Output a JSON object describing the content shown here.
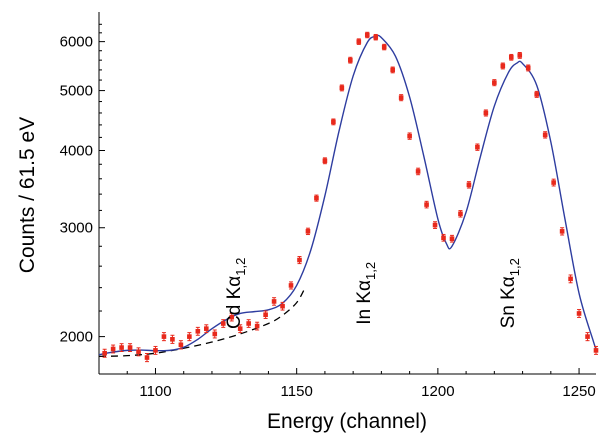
{
  "chart_data": {
    "type": "scatter",
    "title": "",
    "xlabel": "Energy (channel)",
    "ylabel": "Counts / 61.5 eV",
    "y_scale": "log",
    "xlim": [
      1080,
      1256
    ],
    "ylim": [
      1740,
      6700
    ],
    "x_ticks": [
      1100,
      1150,
      1200,
      1250
    ],
    "x_tick_labels": [
      "1100",
      "1150",
      "1200",
      "1250"
    ],
    "y_ticks": [
      2000,
      3000,
      4000,
      5000,
      6000
    ],
    "y_tick_labels": [
      "2000",
      "3000",
      "4000",
      "5000",
      "6000"
    ],
    "grid": false,
    "colors": {
      "data": "#e8291c",
      "error": "#e8291c",
      "fit": "#2e3da0",
      "background": "#000000"
    },
    "annotations": [
      {
        "text": "Cd Kα",
        "sub": "1,2",
        "x": 1130,
        "y": 2350
      },
      {
        "text": "In Kα",
        "sub": "1,2",
        "x": 1176,
        "y": 2350
      },
      {
        "text": "Sn Kα",
        "sub": "1,2",
        "x": 1227,
        "y": 2350
      }
    ],
    "series": [
      {
        "kind": "points",
        "x": [
          1082,
          1085,
          1088,
          1091,
          1094,
          1097,
          1100,
          1103,
          1106,
          1109,
          1112,
          1115,
          1118,
          1121,
          1124,
          1127,
          1130,
          1133,
          1136,
          1139,
          1142,
          1145,
          1148,
          1151,
          1154,
          1157,
          1160,
          1163,
          1166,
          1169,
          1172,
          1175,
          1178,
          1181,
          1184,
          1187,
          1190,
          1193,
          1196,
          1199,
          1202,
          1205,
          1208,
          1211,
          1214,
          1217,
          1220,
          1223,
          1226,
          1229,
          1232,
          1235,
          1238,
          1241,
          1244,
          1247,
          1250,
          1253,
          1256
        ],
        "y": [
          1880,
          1910,
          1920,
          1920,
          1890,
          1850,
          1900,
          2000,
          1980,
          1940,
          2000,
          2040,
          2060,
          2020,
          2100,
          2150,
          2060,
          2100,
          2080,
          2170,
          2280,
          2240,
          2420,
          2660,
          2960,
          3350,
          3850,
          4450,
          5050,
          5600,
          6000,
          6150,
          6100,
          5880,
          5400,
          4870,
          4220,
          3700,
          3270,
          3030,
          2890,
          2880,
          3160,
          3520,
          4050,
          4600,
          5150,
          5480,
          5660,
          5700,
          5440,
          4930,
          4240,
          3550,
          2960,
          2480,
          2180,
          2000,
          1900
        ],
        "err": [
          28,
          28,
          28,
          28,
          28,
          28,
          28,
          30,
          30,
          30,
          30,
          30,
          30,
          30,
          30,
          30,
          30,
          30,
          30,
          30,
          32,
          32,
          32,
          35,
          35,
          38,
          42,
          48,
          55,
          60,
          62,
          62,
          62,
          60,
          58,
          55,
          50,
          45,
          40,
          38,
          36,
          36,
          38,
          42,
          48,
          52,
          58,
          60,
          60,
          62,
          60,
          55,
          50,
          45,
          40,
          36,
          32,
          30,
          28
        ]
      },
      {
        "kind": "fit",
        "style": "solid",
        "x": [
          1080,
          1085,
          1090,
          1095,
          1100,
          1105,
          1110,
          1115,
          1120,
          1125,
          1130,
          1135,
          1140,
          1145,
          1150,
          1155,
          1160,
          1165,
          1170,
          1175,
          1178,
          1180,
          1185,
          1190,
          1195,
          1200,
          1203,
          1205,
          1210,
          1215,
          1220,
          1225,
          1228,
          1230,
          1235,
          1240,
          1245,
          1250,
          1255,
          1256
        ],
        "y": [
          1870,
          1888,
          1900,
          1902,
          1898,
          1900,
          1922,
          1980,
          2060,
          2130,
          2180,
          2195,
          2210,
          2265,
          2420,
          2760,
          3380,
          4300,
          5280,
          5980,
          6120,
          6090,
          5680,
          4880,
          3920,
          3100,
          2830,
          2800,
          3180,
          3900,
          4720,
          5350,
          5540,
          5530,
          5100,
          4130,
          3100,
          2350,
          1970,
          1910
        ]
      },
      {
        "kind": "background",
        "style": "dashed",
        "x": [
          1080,
          1090,
          1100,
          1110,
          1120,
          1130,
          1140,
          1145,
          1150,
          1153
        ],
        "y": [
          1858,
          1863,
          1880,
          1915,
          1960,
          2020,
          2100,
          2165,
          2270,
          2400
        ]
      }
    ]
  }
}
